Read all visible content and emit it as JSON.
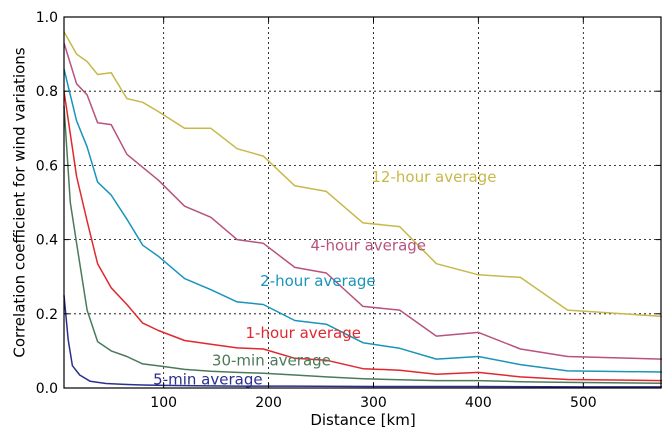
{
  "chart_data": {
    "type": "line",
    "title": "",
    "xlabel": "Distance [km]",
    "ylabel": "Correlation coefficient for wind variations",
    "xlim": [
      5,
      575
    ],
    "ylim": [
      0.0,
      1.0
    ],
    "xticks": [
      100,
      200,
      300,
      400,
      500
    ],
    "xtick_labels": [
      "100",
      "200",
      "300",
      "400",
      "500"
    ],
    "yticks": [
      0.0,
      0.2,
      0.4,
      0.6,
      0.8,
      1.0
    ],
    "ytick_labels": [
      "0.0",
      "0.2",
      "0.4",
      "0.6",
      "0.8",
      "1.0"
    ],
    "grid": true,
    "series": [
      {
        "name": "12-hour average",
        "color": "#c8b84a",
        "x": [
          5,
          17,
          27,
          37,
          50,
          65,
          80,
          95,
          120,
          145,
          170,
          195,
          225,
          255,
          290,
          325,
          360,
          400,
          440,
          485,
          575
        ],
        "y": [
          0.96,
          0.9,
          0.88,
          0.845,
          0.85,
          0.78,
          0.77,
          0.745,
          0.7,
          0.7,
          0.645,
          0.625,
          0.545,
          0.53,
          0.445,
          0.435,
          0.335,
          0.305,
          0.298,
          0.21,
          0.193
        ]
      },
      {
        "name": "4-hour average",
        "color": "#b8527f",
        "x": [
          5,
          17,
          27,
          37,
          50,
          65,
          80,
          95,
          120,
          145,
          170,
          195,
          225,
          255,
          290,
          325,
          360,
          400,
          440,
          485,
          575
        ],
        "y": [
          0.93,
          0.82,
          0.79,
          0.715,
          0.71,
          0.63,
          0.595,
          0.56,
          0.49,
          0.46,
          0.4,
          0.39,
          0.325,
          0.31,
          0.22,
          0.21,
          0.14,
          0.15,
          0.105,
          0.085,
          0.078
        ]
      },
      {
        "name": "2-hour average",
        "color": "#1a94bb",
        "x": [
          5,
          17,
          27,
          37,
          50,
          65,
          80,
          95,
          120,
          145,
          170,
          195,
          225,
          255,
          290,
          325,
          360,
          400,
          440,
          485,
          575
        ],
        "y": [
          0.86,
          0.72,
          0.65,
          0.555,
          0.52,
          0.455,
          0.385,
          0.355,
          0.295,
          0.265,
          0.232,
          0.225,
          0.182,
          0.172,
          0.122,
          0.107,
          0.078,
          0.085,
          0.063,
          0.046,
          0.043
        ]
      },
      {
        "name": "1-hour average",
        "color": "#e0282e",
        "x": [
          5,
          17,
          27,
          37,
          50,
          65,
          80,
          95,
          120,
          145,
          170,
          195,
          225,
          255,
          290,
          325,
          360,
          400,
          440,
          485,
          575
        ],
        "y": [
          0.8,
          0.57,
          0.45,
          0.335,
          0.27,
          0.225,
          0.175,
          0.155,
          0.128,
          0.118,
          0.108,
          0.105,
          0.08,
          0.075,
          0.052,
          0.048,
          0.037,
          0.042,
          0.03,
          0.023,
          0.02
        ]
      },
      {
        "name": "30-min average",
        "color": "#4b7a5a",
        "x": [
          5,
          11,
          17,
          27,
          37,
          50,
          65,
          80,
          100,
          120,
          145,
          170,
          195,
          225,
          255,
          290,
          325,
          360,
          400,
          440,
          485,
          575
        ],
        "y": [
          0.76,
          0.5,
          0.39,
          0.21,
          0.125,
          0.1,
          0.085,
          0.065,
          0.058,
          0.05,
          0.045,
          0.042,
          0.04,
          0.035,
          0.03,
          0.025,
          0.022,
          0.02,
          0.02,
          0.017,
          0.015,
          0.013
        ]
      },
      {
        "name": "5-min average",
        "color": "#2a2f8f",
        "x": [
          5,
          9,
          13,
          20,
          30,
          45,
          60,
          80,
          100,
          130,
          170,
          220,
          300,
          400,
          500,
          575
        ],
        "y": [
          0.25,
          0.13,
          0.06,
          0.035,
          0.018,
          0.012,
          0.01,
          0.008,
          0.007,
          0.006,
          0.005,
          0.005,
          0.004,
          0.004,
          0.003,
          0.003
        ]
      }
    ],
    "annotations": [
      {
        "text": "12-hour average",
        "color": "#c8b84a",
        "x": 298,
        "y": 0.555
      },
      {
        "text": "4-hour average",
        "color": "#b8527f",
        "x": 240,
        "y": 0.37
      },
      {
        "text": "2-hour average",
        "color": "#1a94bb",
        "x": 192,
        "y": 0.275
      },
      {
        "text": "1-hour average",
        "color": "#e0282e",
        "x": 178,
        "y": 0.135
      },
      {
        "text": "30-min average",
        "color": "#4b7a5a",
        "x": 146,
        "y": 0.06
      },
      {
        "text": "5-min average",
        "color": "#2a2f8f",
        "x": 90,
        "y": 0.01
      }
    ]
  }
}
